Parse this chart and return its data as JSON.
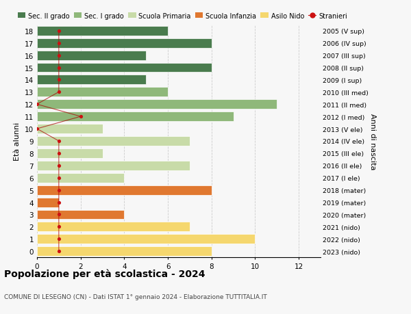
{
  "ages": [
    0,
    1,
    2,
    3,
    4,
    5,
    6,
    7,
    8,
    9,
    10,
    11,
    12,
    13,
    14,
    15,
    16,
    17,
    18
  ],
  "bar_values": [
    8,
    10,
    7,
    4,
    1,
    8,
    4,
    7,
    3,
    7,
    3,
    9,
    11,
    6,
    5,
    8,
    5,
    8,
    6
  ],
  "bar_colors": [
    "#f5d76e",
    "#f5d76e",
    "#f5d76e",
    "#e07830",
    "#e07830",
    "#e07830",
    "#c8dba8",
    "#c8dba8",
    "#c8dba8",
    "#c8dba8",
    "#c8dba8",
    "#8fb87a",
    "#8fb87a",
    "#8fb87a",
    "#4a7c4e",
    "#4a7c4e",
    "#4a7c4e",
    "#4a7c4e",
    "#4a7c4e"
  ],
  "stranieri_values": [
    1,
    1,
    1,
    1,
    1,
    1,
    1,
    1,
    1,
    1,
    0,
    2,
    0,
    1,
    1,
    1,
    1,
    1,
    1
  ],
  "right_labels": [
    "2023 (nido)",
    "2022 (nido)",
    "2021 (nido)",
    "2020 (mater)",
    "2019 (mater)",
    "2018 (mater)",
    "2017 (I ele)",
    "2016 (II ele)",
    "2015 (III ele)",
    "2014 (IV ele)",
    "2013 (V ele)",
    "2012 (I med)",
    "2011 (II med)",
    "2010 (III med)",
    "2009 (I sup)",
    "2008 (II sup)",
    "2007 (III sup)",
    "2006 (IV sup)",
    "2005 (V sup)"
  ],
  "legend_labels": [
    "Sec. II grado",
    "Sec. I grado",
    "Scuola Primaria",
    "Scuola Infanzia",
    "Asilo Nido",
    "Stranieri"
  ],
  "legend_colors": [
    "#4a7c4e",
    "#8fb87a",
    "#c8dba8",
    "#e07830",
    "#f5d76e",
    "#cc1111"
  ],
  "title": "Popolazione per età scolastica - 2024",
  "subtitle": "COMUNE DI LESEGNO (CN) - Dati ISTAT 1° gennaio 2024 - Elaborazione TUTTITALIA.IT",
  "ylabel": "Età alunni",
  "right_ylabel": "Anni di nascita",
  "xticks": [
    0,
    2,
    4,
    6,
    8,
    10,
    12
  ],
  "xlim": [
    0,
    13
  ],
  "background_color": "#f7f7f7",
  "grid_color": "#cccccc"
}
